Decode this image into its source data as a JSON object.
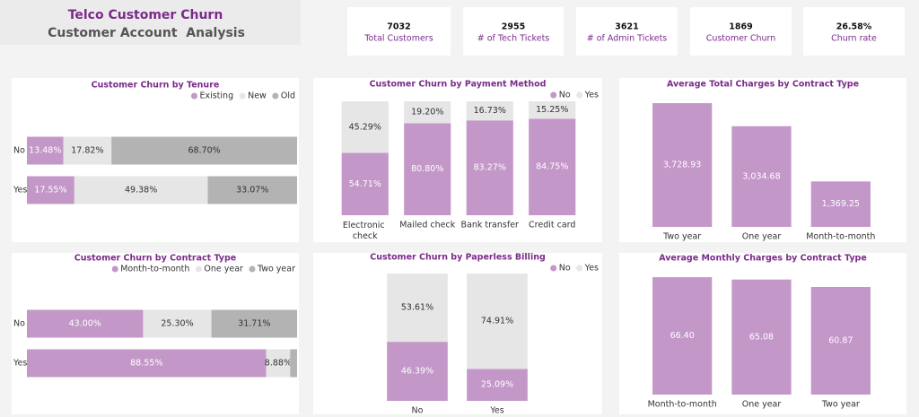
{
  "header": {
    "title": "Telco Customer Churn",
    "subtitle": "Customer Account  Analysis"
  },
  "kpis": [
    {
      "value": 7032,
      "label": "Total Customers"
    },
    {
      "value": 2955,
      "label": "# of Tech Tickets"
    },
    {
      "value": 3621,
      "label": "# of Admin Tickets"
    },
    {
      "value": 1869,
      "label": "Customer Churn"
    },
    {
      "value": "26.58%",
      "label": "Churn rate"
    }
  ],
  "chart_data": [
    {
      "type": "bar",
      "horizontal": true,
      "stacked": true,
      "title": "Customer Churn by Tenure",
      "legend": "top-right",
      "categories": [
        "No",
        "Yes"
      ],
      "xlim": [
        0,
        100
      ],
      "series": [
        {
          "name": "Existing",
          "color": "#c397c8",
          "values": [
            13.48,
            17.55
          ],
          "value_labels": [
            "13.48%",
            "17.55%"
          ]
        },
        {
          "name": "New",
          "color": "#e6e6e6",
          "values": [
            17.82,
            49.38
          ],
          "value_labels": [
            "17.82%",
            "49.38%"
          ]
        },
        {
          "name": "Old",
          "color": "#b3b3b3",
          "values": [
            68.7,
            33.07
          ],
          "value_labels": [
            "68.70%",
            "33.07%"
          ]
        }
      ]
    },
    {
      "type": "bar",
      "horizontal": false,
      "stacked": true,
      "title": "Customer Churn by Payment Method",
      "legend": "top-right",
      "categories": [
        "Electronic check",
        "Mailed check",
        "Bank transfer",
        "Credit card"
      ],
      "ylim": [
        0,
        100
      ],
      "series": [
        {
          "name": "No",
          "color": "#c397c8",
          "values": [
            54.71,
            80.8,
            83.27,
            84.75
          ],
          "value_labels": [
            "54.71%",
            "80.80%",
            "83.27%",
            "84.75%"
          ]
        },
        {
          "name": "Yes",
          "color": "#e6e6e6",
          "values": [
            45.29,
            19.2,
            16.73,
            15.25
          ],
          "value_labels": [
            "45.29%",
            "19.20%",
            "16.73%",
            "15.25%"
          ]
        }
      ]
    },
    {
      "type": "bar",
      "horizontal": false,
      "stacked": false,
      "title": "Average Total Charges by Contract Type",
      "categories": [
        "Two year",
        "One year",
        "Month-to-month"
      ],
      "ylim": [
        0,
        4000
      ],
      "color": "#c397c8",
      "values": [
        3728.93,
        3034.68,
        1369.25
      ],
      "value_labels": [
        "3,728.93",
        "3,034.68",
        "1,369.25"
      ]
    },
    {
      "type": "bar",
      "horizontal": true,
      "stacked": true,
      "title": "Customer Churn by Contract Type",
      "legend": "top-right",
      "categories": [
        "No",
        "Yes"
      ],
      "xlim": [
        0,
        100
      ],
      "series": [
        {
          "name": "Month-to-month",
          "color": "#c397c8",
          "values": [
            43.0,
            88.55
          ],
          "value_labels": [
            "43.00%",
            "88.55%"
          ]
        },
        {
          "name": "One year",
          "color": "#e6e6e6",
          "values": [
            25.3,
            8.88
          ],
          "value_labels": [
            "25.30%",
            "8.88%"
          ]
        },
        {
          "name": "Two year",
          "color": "#b3b3b3",
          "values": [
            31.71,
            2.57
          ],
          "value_labels": [
            "31.71%",
            null
          ]
        }
      ]
    },
    {
      "type": "bar",
      "horizontal": false,
      "stacked": true,
      "title": "Customer Churn by Paperless Billing",
      "legend": "top-right",
      "categories": [
        "No",
        "Yes"
      ],
      "ylim": [
        0,
        100
      ],
      "series": [
        {
          "name": "No",
          "color": "#c397c8",
          "values": [
            46.39,
            25.09
          ],
          "value_labels": [
            "46.39%",
            "25.09%"
          ]
        },
        {
          "name": "Yes",
          "color": "#e6e6e6",
          "values": [
            53.61,
            74.91
          ],
          "value_labels": [
            "53.61%",
            "74.91%"
          ]
        }
      ]
    },
    {
      "type": "bar",
      "horizontal": false,
      "stacked": false,
      "title": "Average Monthly Charges by Contract Type",
      "categories": [
        "Month-to-month",
        "One year",
        "Two year"
      ],
      "ylim": [
        0,
        70
      ],
      "color": "#c397c8",
      "values": [
        66.4,
        65.08,
        60.87
      ],
      "value_labels": [
        "66.40",
        "65.08",
        "60.87"
      ]
    }
  ]
}
